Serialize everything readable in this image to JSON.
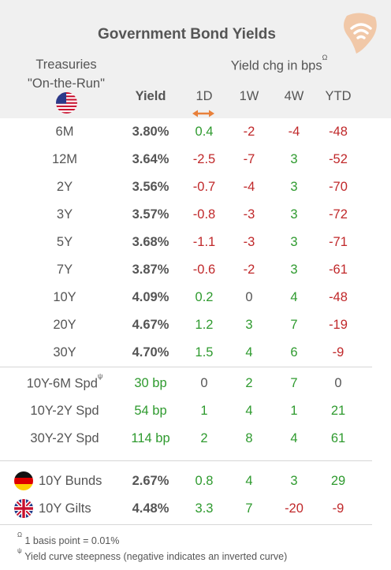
{
  "title": "Government Bond Yields",
  "header": {
    "treasuries_line1": "Treasuries",
    "treasuries_line2": "\"On-the-Run\"",
    "yield": "Yield",
    "chg": "Yield chg in bps",
    "chg_mark": "Ω",
    "cols": [
      "1D",
      "1W",
      "4W",
      "YTD"
    ]
  },
  "colors": {
    "green": "#2e9a2e",
    "red": "#c0282a",
    "header_bg": "#f0f0f0",
    "accent": "#e8803a"
  },
  "treasuries": [
    {
      "label": "6M",
      "yield": "3.80%",
      "d1": "0.4",
      "w1": "-2",
      "w4": "-4",
      "ytd": "-48"
    },
    {
      "label": "12M",
      "yield": "3.64%",
      "d1": "-2.5",
      "w1": "-7",
      "w4": "3",
      "ytd": "-52"
    },
    {
      "label": "2Y",
      "yield": "3.56%",
      "d1": "-0.7",
      "w1": "-4",
      "w4": "3",
      "ytd": "-70"
    },
    {
      "label": "3Y",
      "yield": "3.57%",
      "d1": "-0.8",
      "w1": "-3",
      "w4": "3",
      "ytd": "-72"
    },
    {
      "label": "5Y",
      "yield": "3.68%",
      "d1": "-1.1",
      "w1": "-3",
      "w4": "3",
      "ytd": "-71"
    },
    {
      "label": "7Y",
      "yield": "3.87%",
      "d1": "-0.6",
      "w1": "-2",
      "w4": "3",
      "ytd": "-61"
    },
    {
      "label": "10Y",
      "yield": "4.09%",
      "d1": "0.2",
      "w1": "0",
      "w4": "4",
      "ytd": "-48"
    },
    {
      "label": "20Y",
      "yield": "4.67%",
      "d1": "1.2",
      "w1": "3",
      "w4": "7",
      "ytd": "-19"
    },
    {
      "label": "30Y",
      "yield": "4.70%",
      "d1": "1.5",
      "w1": "4",
      "w4": "6",
      "ytd": "-9"
    }
  ],
  "spreads": [
    {
      "label": "10Y-6M Spd",
      "mark": "ψ",
      "yield": "30 bp",
      "d1": "0",
      "w1": "2",
      "w4": "7",
      "ytd": "0"
    },
    {
      "label": "10Y-2Y Spd",
      "mark": "",
      "yield": "54 bp",
      "d1": "1",
      "w1": "4",
      "w4": "1",
      "ytd": "21"
    },
    {
      "label": "30Y-2Y Spd",
      "mark": "",
      "yield": "114 bp",
      "d1": "2",
      "w1": "8",
      "w4": "4",
      "ytd": "61"
    }
  ],
  "foreign": [
    {
      "label": "10Y Bunds",
      "flag": "germany-flag-icon",
      "yield": "2.67%",
      "d1": "0.8",
      "w1": "4",
      "w4": "3",
      "ytd": "29"
    },
    {
      "label": "10Y Gilts",
      "flag": "uk-flag-icon",
      "yield": "4.48%",
      "d1": "3.3",
      "w1": "7",
      "w4": "-20",
      "ytd": "-9"
    }
  ],
  "footnotes": [
    {
      "mark": "Ω",
      "text": "1 basis point = 0.01%"
    },
    {
      "mark": "ψ",
      "text": "Yield curve steepness (negative indicates an inverted curve)"
    }
  ],
  "icons": {
    "logo": "wifi-signal-logo-icon",
    "us_flag": "us-flag-icon",
    "sort": "double-arrow-icon"
  }
}
